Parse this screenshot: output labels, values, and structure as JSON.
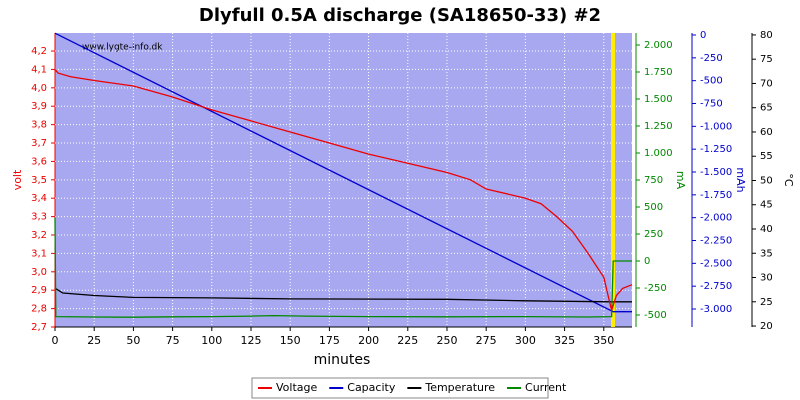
{
  "chart_data": {
    "type": "line",
    "title": "Dlyfull 0.5A discharge (SA18650-33) #2",
    "annotation": "www.lygte-info.dk",
    "xlabel": "minutes",
    "ylabel": "volt",
    "y2label": "mA",
    "y3label": "mAh",
    "y4label": "°C",
    "grid": true,
    "legend": "bottom",
    "xlim": [
      0,
      368
    ],
    "xticks": [
      0,
      25,
      50,
      75,
      100,
      125,
      150,
      175,
      200,
      225,
      250,
      275,
      300,
      325,
      350
    ],
    "ylim": [
      2.7,
      4.298
    ],
    "yticks": [
      {
        "value": 2.7,
        "label": "2,7"
      },
      {
        "value": 2.8,
        "label": "2,8"
      },
      {
        "value": 2.9,
        "label": "2,9"
      },
      {
        "value": 3.0,
        "label": "3,0"
      },
      {
        "value": 3.1,
        "label": "3,1"
      },
      {
        "value": 3.2,
        "label": "3,2"
      },
      {
        "value": 3.3,
        "label": "3,3"
      },
      {
        "value": 3.4,
        "label": "3,4"
      },
      {
        "value": 3.5,
        "label": "3,5"
      },
      {
        "value": 3.6,
        "label": "3,6"
      },
      {
        "value": 3.7,
        "label": "3,7"
      },
      {
        "value": 3.8,
        "label": "3,8"
      },
      {
        "value": 3.9,
        "label": "3,9"
      },
      {
        "value": 4.0,
        "label": "4,0"
      },
      {
        "value": 4.1,
        "label": "4,1"
      },
      {
        "value": 4.2,
        "label": "4,2"
      }
    ],
    "y2lim": [
      -611,
      2111
    ],
    "y2ticks": [
      -500,
      -250,
      0,
      250,
      500,
      750,
      {
        "value": 1000,
        "label": "1.000"
      },
      {
        "value": 1250,
        "label": "1.250"
      },
      {
        "value": 1500,
        "label": "1.500"
      },
      {
        "value": 1750,
        "label": "1.750"
      },
      {
        "value": 2000,
        "label": "2.000"
      }
    ],
    "y3lim": [
      -3197,
      22
    ],
    "y3ticks": [
      {
        "value": -3000,
        "label": "-3.000"
      },
      {
        "value": -2750,
        "label": "-2.750"
      },
      {
        "value": -2500,
        "label": "-2.500"
      },
      {
        "value": -2250,
        "label": "-2.250"
      },
      {
        "value": -2000,
        "label": "-2.000"
      },
      {
        "value": -1750,
        "label": "-1.750"
      },
      {
        "value": -1500,
        "label": "-1.500"
      },
      {
        "value": -1250,
        "label": "-1.250"
      },
      {
        "value": -1000,
        "label": "-1.000"
      },
      -750,
      -500,
      -250,
      0
    ],
    "y4lim": [
      19.8,
      80.4
    ],
    "y4ticks": [
      20,
      25,
      30,
      35,
      40,
      45,
      50,
      55,
      60,
      65,
      70,
      75,
      80
    ],
    "series": [
      {
        "name": "Voltage",
        "color": "#ee0000",
        "axis": "y",
        "x": [
          0,
          2,
          10,
          25,
          50,
          75,
          100,
          125,
          150,
          175,
          200,
          225,
          250,
          265,
          275,
          300,
          310,
          320,
          330,
          340,
          350,
          355,
          358,
          362,
          368
        ],
        "values": [
          4.1,
          4.08,
          4.06,
          4.04,
          4.01,
          3.95,
          3.88,
          3.82,
          3.76,
          3.7,
          3.64,
          3.59,
          3.54,
          3.5,
          3.45,
          3.4,
          3.37,
          3.3,
          3.22,
          3.1,
          2.97,
          2.79,
          2.87,
          2.91,
          2.93
        ]
      },
      {
        "name": "Capacity",
        "color": "#0000cc",
        "axis": "y3",
        "x": [
          0,
          356,
          368
        ],
        "values": [
          20,
          -3030,
          -3030
        ]
      },
      {
        "name": "Temperature",
        "color": "#000000",
        "axis": "y4",
        "x": [
          0,
          5,
          25,
          50,
          100,
          150,
          250,
          300,
          355,
          368
        ],
        "values": [
          27.8,
          26.8,
          26.3,
          25.9,
          25.8,
          25.6,
          25.5,
          25.2,
          25.0,
          25.0
        ]
      },
      {
        "name": "Current",
        "color": "#008800",
        "axis": "y2",
        "x": [
          0,
          0.5,
          25,
          50,
          75,
          100,
          125,
          140,
          160,
          200,
          250,
          300,
          340,
          355,
          356,
          368
        ],
        "values": [
          400,
          -515,
          -518,
          -520,
          -517,
          -515,
          -510,
          -505,
          -510,
          -515,
          -517,
          -515,
          -518,
          -515,
          0,
          0
        ]
      }
    ]
  }
}
